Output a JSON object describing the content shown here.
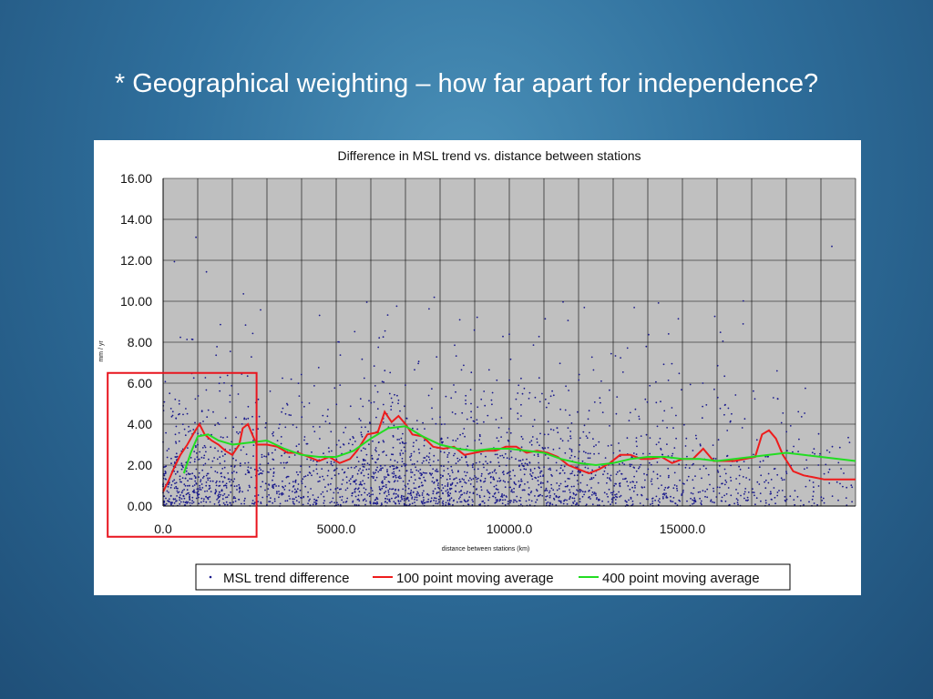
{
  "slide": {
    "title": "* Geographical weighting – how far apart for independence?"
  },
  "chart_data": {
    "type": "scatter",
    "title": "Difference in MSL trend vs. distance between stations",
    "xlabel": "distance between stations (km)",
    "ylabel": "mm / yr",
    "xlim": [
      0,
      20000
    ],
    "ylim": [
      0,
      16
    ],
    "x_ticks": [
      "0.0",
      "5000.0",
      "10000.0",
      "15000.0"
    ],
    "y_ticks": [
      "0.00",
      "2.00",
      "4.00",
      "6.00",
      "8.00",
      "10.00",
      "12.00",
      "14.00",
      "16.00"
    ],
    "grid": true,
    "legend_position": "bottom",
    "highlight_box": {
      "x_range": [
        -1600,
        2700
      ],
      "y_range": [
        -1.5,
        6.5
      ],
      "color": "#e8141e"
    },
    "series": [
      {
        "name": "MSL trend difference",
        "kind": "scatter",
        "color": "#1a1a8c",
        "note_points_sampled": true,
        "density_profile": {
          "x": [
            0,
            500,
            1000,
            1500,
            2000,
            3000,
            4000,
            5000,
            6000,
            7000,
            8000,
            9000,
            10000,
            11000,
            12000,
            13000,
            14000,
            15000,
            16000,
            17000,
            18000,
            19000,
            20000
          ],
          "relative_density": [
            1.0,
            1.0,
            0.9,
            0.8,
            0.7,
            0.55,
            0.55,
            0.6,
            0.95,
            1.0,
            0.85,
            0.8,
            0.8,
            0.7,
            0.65,
            0.55,
            0.45,
            0.4,
            0.35,
            0.35,
            0.2,
            0.15,
            0.1
          ]
        }
      },
      {
        "name": "100 point moving average",
        "kind": "line",
        "color": "#ee1c1c",
        "x": [
          0,
          150,
          300,
          500,
          700,
          900,
          1050,
          1200,
          1400,
          1600,
          1800,
          2000,
          2200,
          2300,
          2450,
          2700,
          3000,
          3300,
          3600,
          3900,
          4200,
          4500,
          4800,
          5100,
          5400,
          5600,
          5900,
          6200,
          6400,
          6600,
          6800,
          7000,
          7200,
          7500,
          7800,
          8100,
          8400,
          8700,
          9000,
          9300,
          9600,
          9900,
          10200,
          10500,
          10800,
          11100,
          11400,
          11700,
          12000,
          12300,
          12600,
          12900,
          13200,
          13500,
          13800,
          14100,
          14400,
          14700,
          15000,
          15300,
          15600,
          15900,
          16200,
          16500,
          16800,
          17100,
          17300,
          17500,
          17700,
          17900,
          18200,
          18500,
          18800,
          19100,
          19400,
          19700,
          20000
        ],
        "y": [
          0.7,
          1.2,
          1.8,
          2.5,
          3.0,
          3.6,
          4.0,
          3.5,
          3.2,
          3.0,
          2.7,
          2.5,
          3.0,
          3.8,
          4.0,
          3.0,
          3.0,
          2.9,
          2.6,
          2.6,
          2.4,
          2.2,
          2.4,
          2.1,
          2.3,
          2.7,
          3.5,
          3.6,
          4.6,
          4.1,
          4.4,
          4.0,
          3.5,
          3.4,
          2.9,
          2.8,
          2.9,
          2.5,
          2.6,
          2.7,
          2.7,
          2.9,
          2.9,
          2.6,
          2.7,
          2.6,
          2.4,
          2.0,
          1.8,
          1.6,
          1.8,
          2.1,
          2.5,
          2.5,
          2.3,
          2.3,
          2.4,
          2.1,
          2.3,
          2.3,
          2.8,
          2.2,
          2.2,
          2.2,
          2.3,
          2.4,
          3.5,
          3.7,
          3.3,
          2.5,
          1.7,
          1.5,
          1.4,
          1.3,
          1.3,
          1.3,
          1.3
        ]
      },
      {
        "name": "400 point moving average",
        "kind": "line",
        "color": "#22dd22",
        "x": [
          600,
          800,
          1000,
          1300,
          1600,
          2000,
          2500,
          3000,
          3500,
          4000,
          4500,
          5000,
          5500,
          6000,
          6500,
          7000,
          7500,
          8000,
          8500,
          9000,
          9500,
          10000,
          10500,
          11000,
          11500,
          12000,
          12500,
          13000,
          13500,
          14000,
          14500,
          15000,
          15500,
          16000,
          16500,
          17000,
          17500,
          18000,
          18500,
          19000,
          19500,
          20000
        ],
        "y": [
          1.6,
          2.6,
          3.4,
          3.5,
          3.2,
          3.0,
          3.1,
          3.2,
          2.8,
          2.5,
          2.4,
          2.4,
          2.7,
          3.3,
          3.8,
          3.9,
          3.4,
          3.0,
          2.8,
          2.7,
          2.8,
          2.8,
          2.7,
          2.6,
          2.3,
          2.1,
          2.0,
          2.1,
          2.3,
          2.4,
          2.4,
          2.3,
          2.3,
          2.2,
          2.3,
          2.4,
          2.5,
          2.6,
          2.5,
          2.4,
          2.3,
          2.2
        ]
      }
    ]
  }
}
